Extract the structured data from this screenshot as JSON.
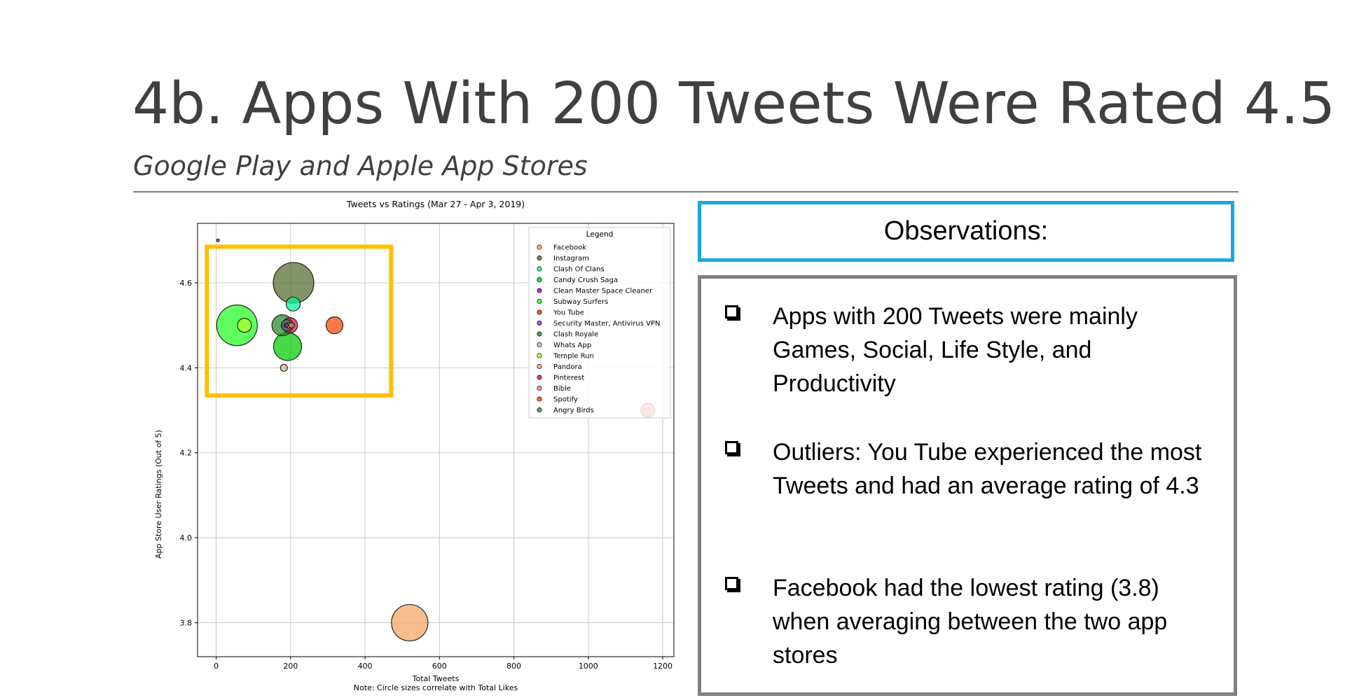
{
  "slide": {
    "title": "4b. Apps With 200 Tweets Were Rated 4.5",
    "subtitle": "Google Play and Apple App Stores"
  },
  "observations": {
    "header": "Observations:",
    "items": [
      "Apps with 200 Tweets were mainly Games, Social, Life Style, and Productivity",
      "Outliers: You Tube experienced the most Tweets and had an average rating of 4.3",
      "Facebook had the lowest rating (3.8) when averaging between the two app stores"
    ]
  },
  "chart_data": {
    "type": "scatter",
    "title": "Tweets vs Ratings (Mar 27 - Apr 3, 2019)",
    "xlabel": "Total Tweets",
    "ylabel": "App Store User Ratings (Out of 5)",
    "note": "Note: Circle sizes correlate with Total Likes",
    "xlim": [
      -50,
      1230
    ],
    "ylim": [
      3.72,
      4.74
    ],
    "xticks": [
      0,
      200,
      400,
      600,
      800,
      1000,
      1200
    ],
    "yticks": [
      3.8,
      4.0,
      4.2,
      4.4,
      4.6
    ],
    "ytick_labels": [
      "3.8",
      "4.0",
      "4.2",
      "4.4",
      "4.6"
    ],
    "grid": true,
    "legend_title": "Legend",
    "legend_position": "top-right",
    "highlight_box": {
      "x": [
        -25,
        470
      ],
      "y": [
        4.335,
        4.685
      ],
      "color": "#ffc000"
    },
    "series": [
      {
        "name": "Facebook",
        "color": "#f4a460",
        "points": [
          {
            "x": 520,
            "y": 3.8,
            "size": 26
          }
        ]
      },
      {
        "name": "Instagram",
        "color": "#556b2f",
        "points": [
          {
            "x": 208,
            "y": 4.6,
            "size": 29
          }
        ]
      },
      {
        "name": "Clash Of Clans",
        "color": "#00fa9a",
        "points": [
          {
            "x": 207,
            "y": 4.55,
            "size": 10
          }
        ]
      },
      {
        "name": "Candy Crush Saga",
        "color": "#00cc00",
        "points": [
          {
            "x": 192,
            "y": 4.45,
            "size": 20
          }
        ]
      },
      {
        "name": "Clean Master Space Cleaner",
        "color": "#9400d3",
        "points": [
          {
            "x": 188,
            "y": 4.5,
            "size": 3
          }
        ]
      },
      {
        "name": "Subway Surfers",
        "color": "#22ff22",
        "points": [
          {
            "x": 56,
            "y": 4.5,
            "size": 29
          }
        ]
      },
      {
        "name": "You Tube",
        "color": "#ff1a1a",
        "points": [
          {
            "x": 1160,
            "y": 4.3,
            "size": 10
          }
        ]
      },
      {
        "name": "Security Master, Antivirus VPN",
        "color": "#8a2be2",
        "points": [
          {
            "x": 5,
            "y": 4.7,
            "size": 2
          }
        ]
      },
      {
        "name": "Clash Royale",
        "color": "#228b22",
        "points": [
          {
            "x": 178,
            "y": 4.5,
            "size": 15
          }
        ]
      },
      {
        "name": "Whats App",
        "color": "#d2b48c",
        "points": [
          {
            "x": 182,
            "y": 4.4,
            "size": 5
          }
        ]
      },
      {
        "name": "Temple Run",
        "color": "#adff2f",
        "points": [
          {
            "x": 76,
            "y": 4.5,
            "size": 10
          }
        ]
      },
      {
        "name": "Pandora",
        "color": "#f4a460",
        "points": [
          {
            "x": 195,
            "y": 4.5,
            "size": 4
          }
        ]
      },
      {
        "name": "Pinterest",
        "color": "#dc143c",
        "points": [
          {
            "x": 198,
            "y": 4.5,
            "size": 11
          }
        ]
      },
      {
        "name": "Bible",
        "color": "#fa8072",
        "points": [
          {
            "x": 203,
            "y": 4.5,
            "size": 4
          }
        ]
      },
      {
        "name": "Spotify",
        "color": "#ff4500",
        "points": [
          {
            "x": 318,
            "y": 4.5,
            "size": 12
          }
        ]
      },
      {
        "name": "Angry Birds",
        "color": "#2e8b57",
        "points": [
          {
            "x": 190,
            "y": 4.5,
            "size": 8
          }
        ]
      }
    ]
  }
}
